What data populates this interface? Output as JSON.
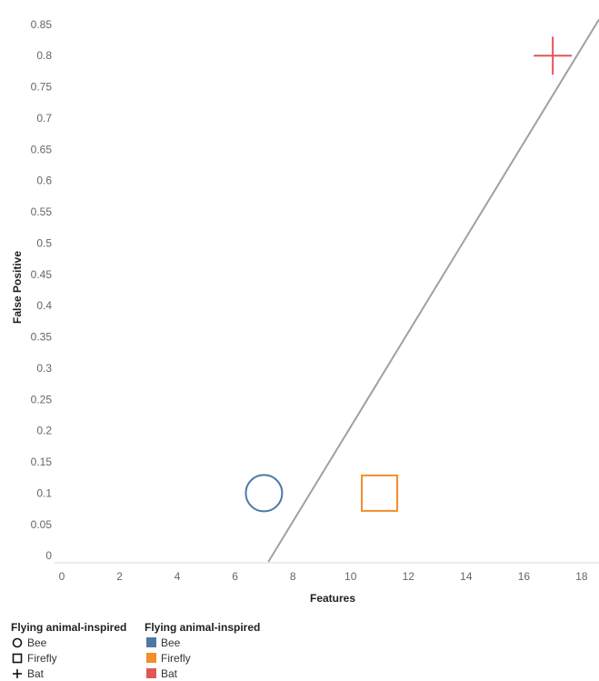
{
  "chart_data": {
    "type": "scatter",
    "xlabel": "Features",
    "ylabel": "False Positive",
    "xlim": [
      0,
      18.6
    ],
    "ylim": [
      -0.01,
      0.86
    ],
    "xticks": [
      0,
      2,
      4,
      6,
      8,
      10,
      12,
      14,
      16,
      18
    ],
    "yticks": [
      0,
      0.05,
      0.1,
      0.15,
      0.2,
      0.25,
      0.3,
      0.35,
      0.4,
      0.45,
      0.5,
      0.55,
      0.6,
      0.65,
      0.7,
      0.75,
      0.8,
      0.85
    ],
    "ytick_labels": [
      "0",
      "0.05",
      "0.1",
      "0.15",
      "0.2",
      "0.25",
      "0.3",
      "0.35",
      "0.4",
      "0.45",
      "0.5",
      "0.55",
      "0.6",
      "0.65",
      "0.7",
      "0.75",
      "0.8",
      "0.85"
    ],
    "points": [
      {
        "label": "Bee",
        "x": 7,
        "y": 0.1,
        "shape": "circle",
        "color": "#4e79a7"
      },
      {
        "label": "Firefly",
        "x": 11,
        "y": 0.1,
        "shape": "square",
        "color": "#f28e2b"
      },
      {
        "label": "Bat",
        "x": 17,
        "y": 0.8,
        "shape": "plus",
        "color": "#e15759"
      }
    ],
    "trend_line": {
      "x1": 7.15,
      "y1": -0.01,
      "x2": 18.6,
      "y2": 0.858,
      "color": "#a0a0a0"
    },
    "grid": false
  },
  "legend": {
    "shape_title": "Flying animal-inspired",
    "color_title": "Flying animal-inspired",
    "items": [
      {
        "label": "Bee",
        "shape": "circle",
        "color": "#4e79a7"
      },
      {
        "label": "Firefly",
        "shape": "square",
        "color": "#f28e2b"
      },
      {
        "label": "Bat",
        "shape": "plus",
        "color": "#e15759"
      }
    ]
  }
}
